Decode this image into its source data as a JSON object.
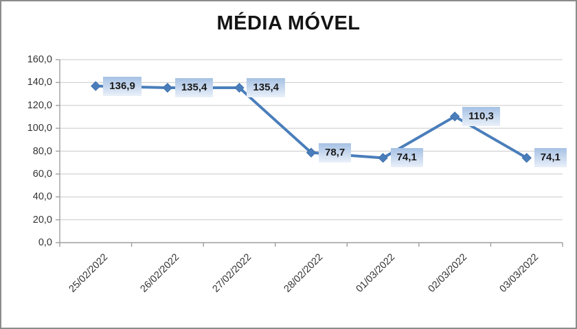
{
  "window": {
    "background": "#ffffff",
    "frame_border_color": "#8c8c8c"
  },
  "chart_data": {
    "type": "line",
    "title": "MÉDIA MÓVEL",
    "categories": [
      "25/02/2022",
      "26/02/2022",
      "27/02/2022",
      "28/02/2022",
      "01/03/2022",
      "02/03/2022",
      "03/03/2022"
    ],
    "values": [
      136.9,
      135.4,
      135.4,
      78.7,
      74.1,
      110.3,
      74.1
    ],
    "value_labels": [
      "136,9",
      "135,4",
      "135,4",
      "78,7",
      "74,1",
      "110,3",
      "74,1"
    ],
    "xlabel": "",
    "ylabel": "",
    "ylim": [
      0,
      160
    ],
    "ytick_step": 20,
    "ytick_labels": [
      "0,0",
      "20,0",
      "40,0",
      "60,0",
      "80,0",
      "100,0",
      "120,0",
      "140,0",
      "160,0"
    ],
    "grid": true,
    "legend": "none",
    "marker": "diamond",
    "colors": {
      "line": "#4a7ebb",
      "marker_fill": "#4a7ebb",
      "marker_stroke": "#3f6fae",
      "label_bg_top": "#a6c1e4",
      "label_bg_bottom": "#eaf0f9",
      "gridline": "#c8c8c8",
      "axis": "#9e9e9e",
      "tick": "#9e9e9e",
      "axis_text": "#333333",
      "title_text": "#141414",
      "label_text": "#1a1a1a"
    }
  }
}
